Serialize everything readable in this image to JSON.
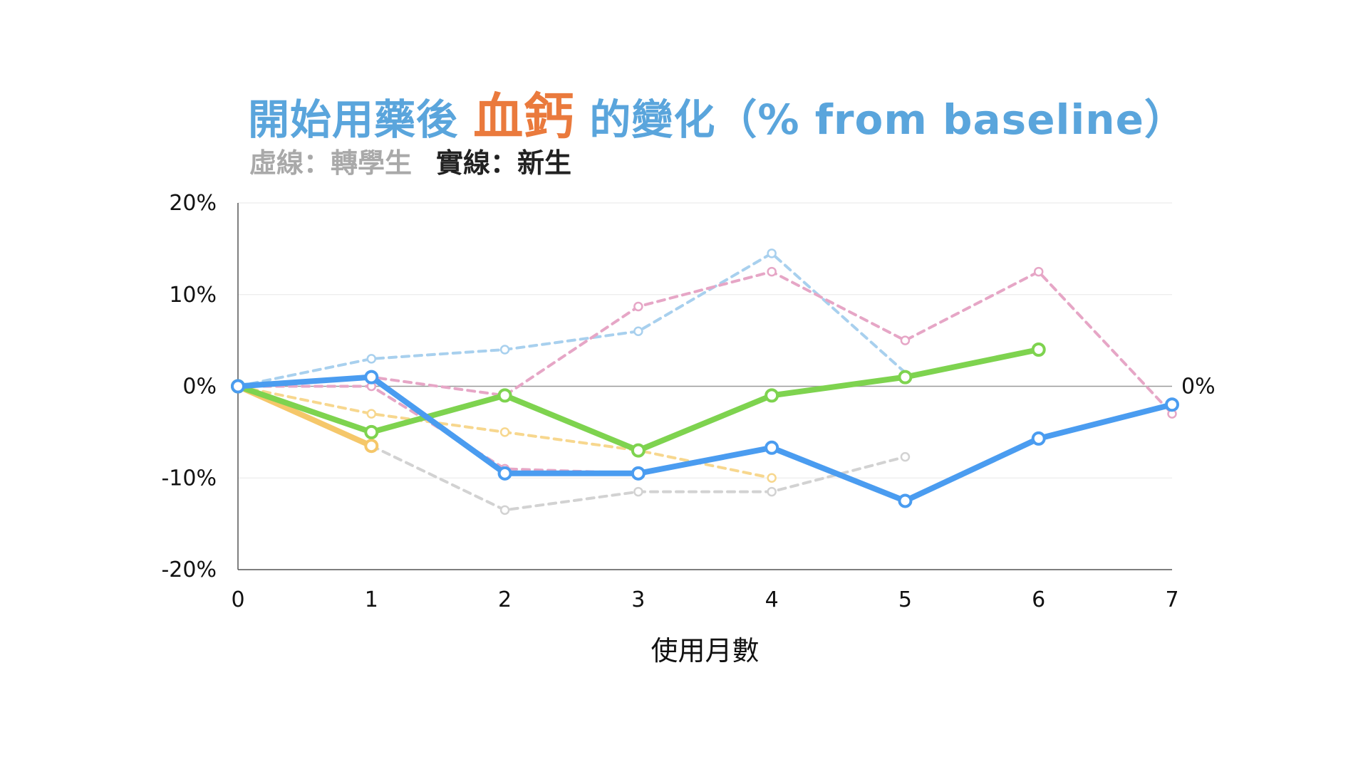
{
  "title": {
    "prefix": "開始用藥後 ",
    "accent": "血鈣",
    "suffix": " 的變化（% from baseline）"
  },
  "subtitle": {
    "dashed_label": "虛線：轉學生",
    "solid_label": "實線：新生"
  },
  "colors": {
    "title": "#5aa5dc",
    "accent": "#ea7a3d",
    "subtitle_dashed": "#a9a9a9",
    "subtitle_solid": "#222222",
    "axis": "#555555",
    "grid": "#ececec",
    "zero_line": "#999999"
  },
  "chart_data": {
    "type": "line",
    "xlabel": "使用月數",
    "ylabel": "",
    "xlim": [
      0,
      7
    ],
    "ylim": [
      -20,
      20
    ],
    "x_ticks": [
      "0",
      "1",
      "2",
      "3",
      "4",
      "5",
      "6",
      "7"
    ],
    "y_ticks": [
      {
        "value": 20,
        "label": "20%"
      },
      {
        "value": 10,
        "label": "10%"
      },
      {
        "value": 0,
        "label": "0%"
      },
      {
        "value": -10,
        "label": "-10%"
      },
      {
        "value": -20,
        "label": "-20%"
      }
    ],
    "zero_annotation": "0%",
    "grid": true,
    "series": [
      {
        "style": "dashed",
        "color": "#a8d0ee",
        "x": [
          0,
          1,
          2,
          3,
          4,
          5
        ],
        "values": [
          0,
          3,
          4,
          6,
          14.5,
          1.5
        ],
        "markers": [
          0,
          1,
          2,
          3,
          4
        ]
      },
      {
        "style": "dashed",
        "color": "#e6a6c6",
        "x": [
          0,
          1,
          2,
          3,
          4,
          5,
          6,
          7
        ],
        "values": [
          0,
          1,
          -1,
          8.7,
          12.5,
          5,
          12.5,
          -3
        ]
      },
      {
        "style": "dashed",
        "color": "#e6a6c6",
        "x": [
          0,
          1,
          2,
          3
        ],
        "values": [
          0,
          0,
          -9,
          -9.5
        ],
        "markers": [
          1,
          2
        ]
      },
      {
        "style": "dashed",
        "color": "#f7d78e",
        "x": [
          0,
          1,
          2,
          3,
          4
        ],
        "values": [
          0,
          -3,
          -5,
          -7,
          -10
        ]
      },
      {
        "style": "dashed",
        "color": "#d2d2d2",
        "x": [
          1,
          2,
          3,
          4,
          5
        ],
        "values": [
          -6.5,
          -13.5,
          -11.5,
          -11.5,
          -7.7
        ],
        "markers": [
          1,
          2,
          3,
          4
        ]
      },
      {
        "style": "solid",
        "color": "#f5c76a",
        "x": [
          0,
          1
        ],
        "values": [
          0,
          -6.5
        ]
      },
      {
        "style": "solid",
        "color": "#7ed34f",
        "x": [
          0,
          1,
          2,
          3,
          4,
          5,
          6
        ],
        "values": [
          0,
          -5,
          -1,
          -7,
          -1,
          1,
          4
        ]
      },
      {
        "style": "solid",
        "color": "#4a9cf0",
        "x": [
          0,
          1,
          2,
          3,
          4,
          5,
          6,
          7
        ],
        "values": [
          0,
          1,
          -9.5,
          -9.5,
          -6.7,
          -12.5,
          -5.7,
          -2
        ]
      }
    ]
  }
}
